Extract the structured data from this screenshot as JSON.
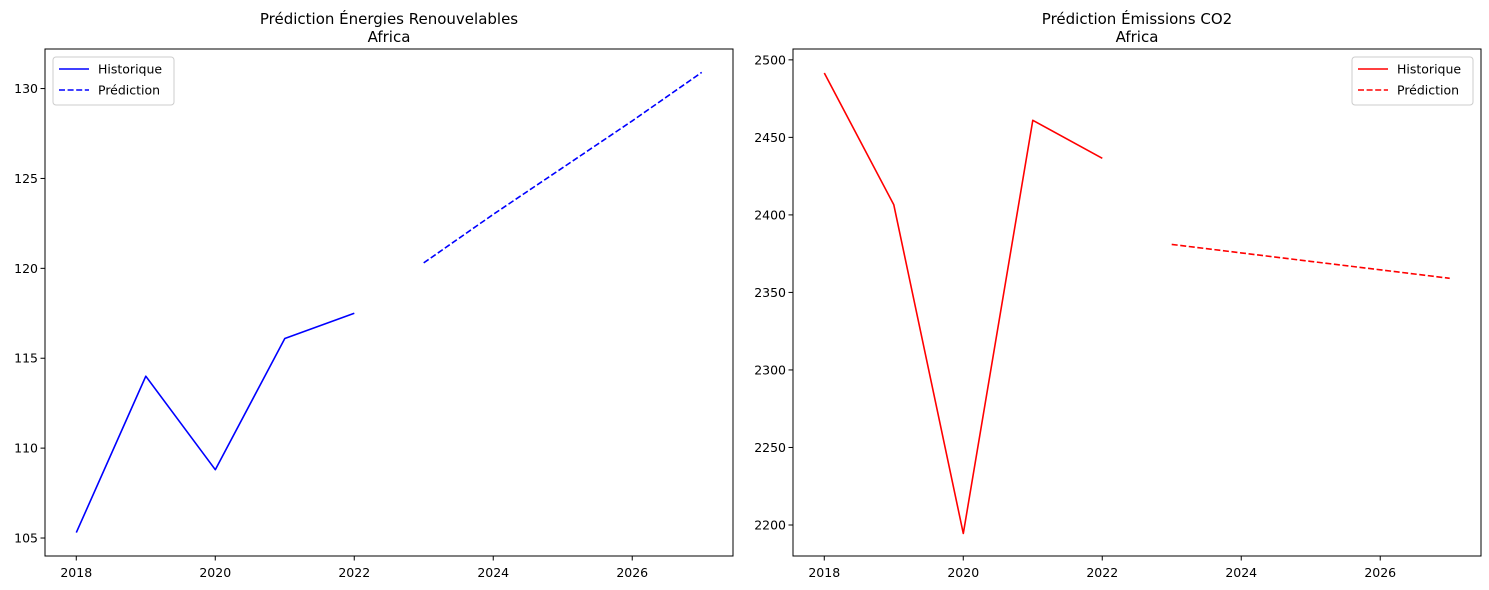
{
  "chart_data": [
    {
      "type": "line",
      "title": "Prédiction Énergies Renouvelables",
      "subtitle": "Africa",
      "xlabel": "",
      "ylabel": "",
      "xlim": [
        2017.55,
        2027.45
      ],
      "ylim": [
        104.0,
        132.2
      ],
      "xticks": [
        "2018",
        "2020",
        "2022",
        "2024",
        "2026"
      ],
      "yticks": [
        "105",
        "110",
        "115",
        "120",
        "125",
        "130"
      ],
      "xtick_values": [
        2018,
        2020,
        2022,
        2024,
        2026
      ],
      "ytick_values": [
        105,
        110,
        115,
        120,
        125,
        130
      ],
      "grid": false,
      "legend_position": "top-left",
      "series": [
        {
          "name": "Historique",
          "color": "#0000ff",
          "style": "solid",
          "x": [
            2018,
            2019,
            2020,
            2021,
            2022
          ],
          "y": [
            105.3,
            114.0,
            108.8,
            116.1,
            117.5
          ]
        },
        {
          "name": "Prédiction",
          "color": "#0000ff",
          "style": "dashed",
          "x": [
            2023,
            2024,
            2025,
            2026,
            2027
          ],
          "y": [
            120.3,
            123.0,
            125.6,
            128.2,
            130.9
          ]
        }
      ]
    },
    {
      "type": "line",
      "title": "Prédiction Émissions CO2",
      "subtitle": "Africa",
      "xlabel": "",
      "ylabel": "",
      "xlim": [
        2017.55,
        2027.45
      ],
      "ylim": [
        2180,
        2507
      ],
      "xticks": [
        "2018",
        "2020",
        "2022",
        "2024",
        "2026"
      ],
      "yticks": [
        "2200",
        "2250",
        "2300",
        "2350",
        "2400",
        "2450",
        "2500"
      ],
      "xtick_values": [
        2018,
        2020,
        2022,
        2024,
        2026
      ],
      "ytick_values": [
        2200,
        2250,
        2300,
        2350,
        2400,
        2450,
        2500
      ],
      "grid": false,
      "legend_position": "top-right",
      "series": [
        {
          "name": "Historique",
          "color": "#ff0000",
          "style": "solid",
          "x": [
            2018,
            2019,
            2020,
            2021,
            2022
          ],
          "y": [
            2491.5,
            2406.5,
            2194.5,
            2461.0,
            2436.5
          ]
        },
        {
          "name": "Prédiction",
          "color": "#ff0000",
          "style": "dashed",
          "x": [
            2023,
            2024,
            2025,
            2026,
            2027
          ],
          "y": [
            2381.0,
            2375.5,
            2370.0,
            2364.6,
            2359.1
          ]
        }
      ]
    }
  ]
}
